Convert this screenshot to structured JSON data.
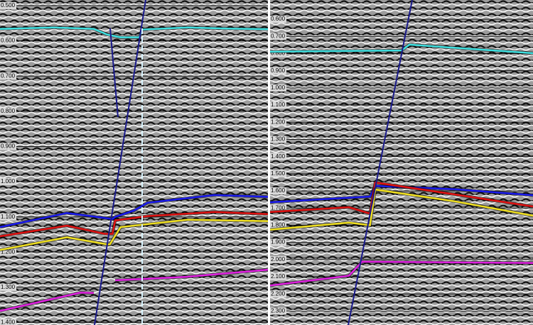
{
  "chart_data": [
    {
      "type": "line",
      "yreversed": true,
      "grid": true,
      "ylim": [
        0.484,
        1.407
      ],
      "yticks": [
        {
          "value": 0.5,
          "label": "0.500"
        },
        {
          "value": 0.6,
          "label": "0.600"
        },
        {
          "value": 0.7,
          "label": "0.700"
        },
        {
          "value": 0.8,
          "label": "0.800"
        },
        {
          "value": 0.9,
          "label": "0.900"
        },
        {
          "value": 1.0,
          "label": "1.000"
        },
        {
          "value": 1.1,
          "label": "1.100"
        },
        {
          "value": 1.2,
          "label": "1.200"
        },
        {
          "value": 1.3,
          "label": "1.300"
        },
        {
          "value": 1.4,
          "label": "1.400"
        }
      ],
      "series": [
        {
          "color": "#3ee0e0",
          "x": [
            0,
            20,
            35,
            40,
            45,
            52,
            53,
            70,
            85,
            100
          ],
          "values": [
            0.566,
            0.562,
            0.566,
            0.582,
            0.59,
            0.59,
            0.568,
            0.562,
            0.565,
            0.567
          ]
        },
        {
          "color": "#1a1aee",
          "x": [
            0,
            25,
            42,
            43,
            50,
            55,
            80,
            100
          ],
          "values": [
            1.129,
            1.089,
            1.106,
            1.1,
            1.082,
            1.06,
            1.038,
            1.043
          ]
        },
        {
          "color": "#e01010",
          "x": [
            0,
            25,
            39,
            42,
            43,
            55,
            80,
            100
          ],
          "values": [
            1.155,
            1.125,
            1.148,
            1.148,
            1.11,
            1.098,
            1.086,
            1.092
          ]
        },
        {
          "color": "#f0e020",
          "x": [
            0,
            25,
            40,
            41,
            45,
            70,
            100
          ],
          "values": [
            1.194,
            1.158,
            1.178,
            1.178,
            1.129,
            1.108,
            1.112
          ]
        },
        {
          "color": "#e020e0",
          "x": [
            0,
            30,
            35,
            37,
            43,
            70,
            100
          ],
          "values": [
            1.367,
            1.315,
            1.316,
            null,
            1.28,
            1.27,
            1.25
          ]
        }
      ]
    },
    {
      "type": "line",
      "yreversed": true,
      "grid": true,
      "ylim": [
        0.488,
        2.381
      ],
      "yticks": [
        {
          "value": 0.6,
          "label": "0.600"
        },
        {
          "value": 0.7,
          "label": "0.700"
        },
        {
          "value": 0.8,
          "label": "0.800"
        },
        {
          "value": 0.9,
          "label": "0.900"
        },
        {
          "value": 1.0,
          "label": "1.000"
        },
        {
          "value": 1.1,
          "label": "1.100"
        },
        {
          "value": 1.2,
          "label": "1.200"
        },
        {
          "value": 1.3,
          "label": "1.300"
        },
        {
          "value": 1.4,
          "label": "1.400"
        },
        {
          "value": 1.5,
          "label": "1.500"
        },
        {
          "value": 1.6,
          "label": "1.600"
        },
        {
          "value": 1.7,
          "label": "1.700"
        },
        {
          "value": 1.8,
          "label": "1.800"
        },
        {
          "value": 1.9,
          "label": "1.900"
        },
        {
          "value": 2.0,
          "label": "2.000"
        },
        {
          "value": 2.1,
          "label": "2.100"
        },
        {
          "value": 2.2,
          "label": "2.200"
        },
        {
          "value": 2.3,
          "label": "2.300"
        }
      ],
      "series": [
        {
          "color": "#3ee0e0",
          "x": [
            0,
            20,
            50,
            53,
            100
          ],
          "values": [
            0.789,
            0.786,
            0.782,
            0.748,
            0.798
          ]
        },
        {
          "color": "#1a1aee",
          "x": [
            0,
            38,
            40,
            70,
            100
          ],
          "values": [
            1.666,
            1.633,
            1.571,
            1.59,
            1.625
          ]
        },
        {
          "color": "#e01010",
          "x": [
            0,
            30,
            38,
            40,
            70,
            100
          ],
          "values": [
            1.723,
            1.695,
            1.732,
            1.551,
            1.62,
            1.691
          ]
        },
        {
          "color": "#f0e020",
          "x": [
            0,
            30,
            38,
            40,
            70,
            100
          ],
          "values": [
            1.826,
            1.785,
            1.8,
            1.592,
            1.66,
            1.744
          ]
        },
        {
          "color": "#e020e0",
          "x": [
            0,
            30,
            35,
            100
          ],
          "values": [
            2.151,
            2.094,
            2.012,
            2.02
          ]
        }
      ]
    }
  ]
}
